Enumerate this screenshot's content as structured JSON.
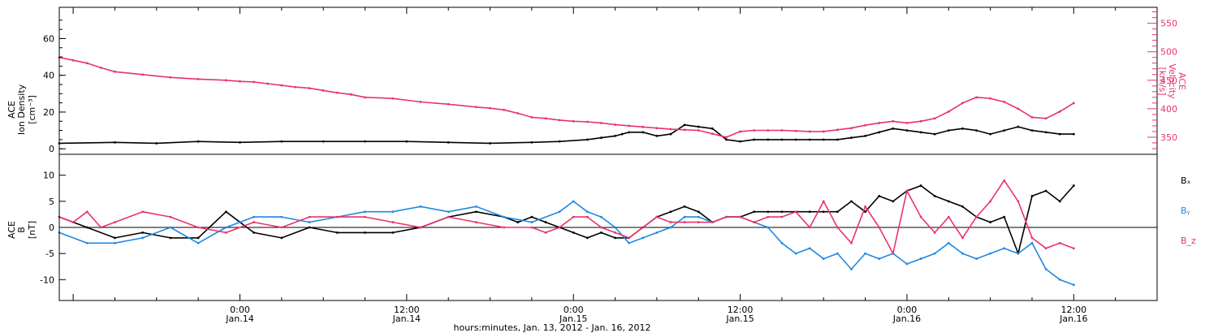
{
  "chart_data": [
    {
      "type": "line",
      "title": "",
      "ylabel": [
        "ACE",
        "Ion Density",
        "[cm⁻³]"
      ],
      "ylabel_right": [
        "ACE",
        "Velocity",
        "[km/s]"
      ],
      "ylim": [
        -3,
        77
      ],
      "ylim_right": [
        320,
        578
      ],
      "yticks": [
        0,
        20,
        40,
        60
      ],
      "yticks_right": [
        350,
        400,
        450,
        500,
        550
      ],
      "colors": {
        "density": "#000000",
        "velocity": "#e8336a"
      },
      "series": [
        {
          "axis": "left",
          "color": "#000000",
          "x": [
            -13,
            -9,
            -6,
            -3,
            0,
            3,
            6,
            9,
            12,
            15,
            18,
            21,
            23,
            25,
            26,
            27,
            27.5,
            28,
            29,
            30,
            31,
            32,
            33,
            34,
            35,
            36,
            37,
            38,
            39,
            40,
            41,
            42,
            43,
            44,
            45,
            46,
            47,
            48,
            49,
            50,
            51,
            52,
            53,
            54,
            55,
            56,
            57,
            58,
            59,
            60
          ],
          "y": [
            3,
            3.5,
            3,
            4,
            3.5,
            4,
            4,
            4,
            4,
            3.5,
            3,
            3.5,
            4,
            5,
            6,
            7,
            8,
            9,
            9,
            7,
            8,
            13,
            12,
            11,
            5,
            4,
            5,
            5,
            5,
            5,
            5,
            5,
            5,
            6,
            7,
            9,
            11,
            10,
            9,
            8,
            10,
            11,
            10,
            8,
            10,
            12,
            10,
            9,
            8,
            8
          ]
        },
        {
          "axis": "right",
          "color": "#e8336a",
          "x": [
            -13,
            -12,
            -11,
            -10,
            -9,
            -7,
            -5,
            -3,
            -1,
            0,
            1,
            2,
            3,
            4,
            5,
            6,
            7,
            8,
            9,
            11,
            13,
            15,
            17,
            18,
            19,
            20,
            21,
            22,
            23,
            24,
            25,
            26,
            27,
            28,
            29,
            30,
            31,
            32,
            33,
            34,
            35,
            36,
            37,
            38,
            39,
            40,
            41,
            42,
            43,
            44,
            45,
            46,
            47,
            48,
            49,
            50,
            51,
            52,
            53,
            54,
            55,
            56,
            57,
            58,
            59,
            60
          ],
          "y": [
            490,
            485,
            480,
            472,
            465,
            460,
            455,
            452,
            450,
            448,
            447,
            444,
            441,
            438,
            436,
            432,
            428,
            425,
            420,
            418,
            412,
            408,
            403,
            401,
            398,
            392,
            385,
            383,
            380,
            378,
            377,
            375,
            372,
            370,
            368,
            366,
            364,
            363,
            362,
            356,
            350,
            360,
            362,
            362,
            362,
            361,
            360,
            360,
            363,
            366,
            371,
            375,
            378,
            375,
            378,
            383,
            395,
            410,
            420,
            418,
            412,
            400,
            385,
            383,
            395,
            410
          ]
        }
      ]
    },
    {
      "type": "line",
      "title": "",
      "ylabel": [
        "ACE",
        "B",
        "[nT]"
      ],
      "ylim": [
        -14,
        14
      ],
      "yticks": [
        -10,
        -5,
        0,
        5,
        10
      ],
      "zero_line": true,
      "legend": "right",
      "legend_entries": [
        {
          "label": "Bₓ",
          "color": "#000000"
        },
        {
          "label": "Bᵧ",
          "color": "#1e88e5"
        },
        {
          "label": "B_z",
          "color": "#e8336a"
        }
      ],
      "series": [
        {
          "name": "Bₓ",
          "color": "#000000",
          "x": [
            -13,
            -11,
            -9,
            -7,
            -5,
            -3,
            -1,
            1,
            3,
            5,
            7,
            9,
            11,
            13,
            15,
            17,
            19,
            20,
            21,
            22,
            23,
            24,
            25,
            26,
            27,
            28,
            29,
            30,
            31,
            32,
            33,
            34,
            35,
            36,
            37,
            38,
            39,
            40,
            41,
            42,
            43,
            44,
            45,
            46,
            47,
            48,
            49,
            50,
            51,
            52,
            53,
            54,
            55,
            56,
            57,
            58,
            59,
            60
          ],
          "y": [
            2,
            0,
            -2,
            -1,
            -2,
            -2,
            3,
            -1,
            -2,
            0,
            -1,
            -1,
            -1,
            0,
            2,
            3,
            2,
            1,
            2,
            1,
            0,
            -1,
            -2,
            -1,
            -2,
            -2,
            0,
            2,
            3,
            4,
            3,
            1,
            2,
            2,
            3,
            3,
            3,
            3,
            3,
            3,
            3,
            5,
            3,
            6,
            5,
            7,
            8,
            6,
            5,
            4,
            2,
            1,
            2,
            -5,
            6,
            7,
            5,
            8
          ]
        },
        {
          "name": "Bᵧ",
          "color": "#1e88e5",
          "x": [
            -13,
            -11,
            -9,
            -7,
            -5,
            -3,
            -1,
            1,
            3,
            5,
            7,
            9,
            11,
            13,
            15,
            17,
            19,
            21,
            23,
            24,
            25,
            26,
            27,
            28,
            29,
            30,
            31,
            32,
            33,
            34,
            35,
            36,
            37,
            38,
            39,
            40,
            41,
            42,
            43,
            44,
            45,
            46,
            47,
            48,
            49,
            50,
            51,
            52,
            53,
            54,
            55,
            56,
            57,
            58,
            59,
            60
          ],
          "y": [
            -1,
            -3,
            -3,
            -2,
            0,
            -3,
            0,
            2,
            2,
            1,
            2,
            3,
            3,
            4,
            3,
            4,
            2,
            1,
            3,
            5,
            3,
            2,
            0,
            -3,
            -2,
            -1,
            0,
            2,
            2,
            1,
            2,
            2,
            1,
            0,
            -3,
            -5,
            -4,
            -6,
            -5,
            -8,
            -5,
            -6,
            -5,
            -7,
            -6,
            -5,
            -3,
            -5,
            -6,
            -5,
            -4,
            -5,
            -3,
            -8,
            -10,
            -11
          ]
        },
        {
          "name": "B_z",
          "color": "#e8336a",
          "x": [
            -13,
            -12,
            -11,
            -10,
            -9,
            -7,
            -5,
            -3,
            -1,
            1,
            3,
            5,
            7,
            9,
            11,
            13,
            15,
            17,
            19,
            21,
            22,
            23,
            24,
            25,
            26,
            27,
            28,
            29,
            30,
            31,
            32,
            33,
            34,
            35,
            36,
            37,
            38,
            39,
            40,
            41,
            42,
            43,
            44,
            45,
            46,
            47,
            48,
            49,
            50,
            51,
            52,
            53,
            54,
            55,
            56,
            57,
            58,
            59,
            60
          ],
          "y": [
            2,
            1,
            3,
            0,
            1,
            3,
            2,
            0,
            -1,
            1,
            0,
            2,
            2,
            2,
            1,
            0,
            2,
            1,
            0,
            0,
            -1,
            0,
            2,
            2,
            0,
            -1,
            -2,
            0,
            2,
            1,
            1,
            1,
            1,
            2,
            2,
            1,
            2,
            2,
            3,
            0,
            5,
            0,
            -3,
            4,
            0,
            -5,
            7,
            2,
            -1,
            2,
            -2,
            2,
            5,
            9,
            5,
            -2,
            -4,
            -3,
            -4
          ]
        }
      ]
    }
  ],
  "xaxis": {
    "xlabel": "hours:minutes, Jan. 13, 2012 - Jan. 16, 2012",
    "xlim": [
      -13,
      66
    ],
    "ticks": [
      {
        "x": 0,
        "time": "0:00",
        "date": "Jan.14"
      },
      {
        "x": 12,
        "time": "12:00",
        "date": "Jan.14"
      },
      {
        "x": 24,
        "time": "0:00",
        "date": "Jan.15"
      },
      {
        "x": 36,
        "time": "12:00",
        "date": "Jan.15"
      },
      {
        "x": 48,
        "time": "0:00",
        "date": "Jan.16"
      },
      {
        "x": 60,
        "time": "12:00",
        "date": "Jan.16"
      }
    ]
  }
}
